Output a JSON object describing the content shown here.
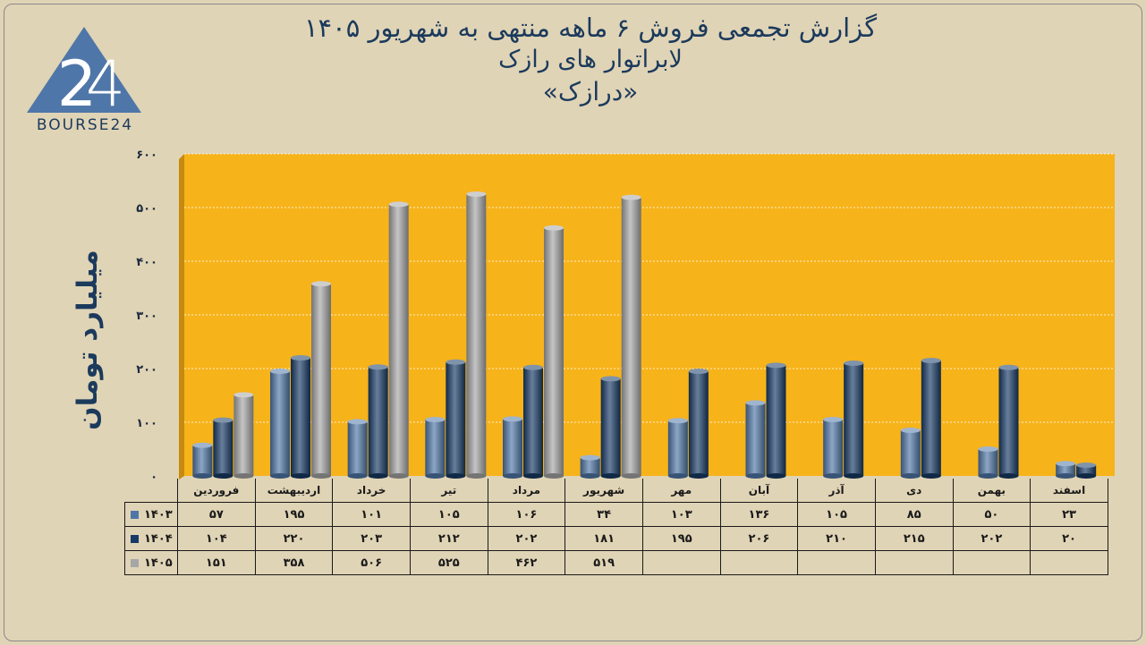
{
  "title": {
    "line1": "گزارش تجمعی فروش ۶ ماهه منتهی به شهریور ۱۴۰۵",
    "line2": "لابراتوار های رازک",
    "line3": "«درازک»"
  },
  "logo": {
    "icon": "bourse24-triangle-logo",
    "text": "BOURSE24"
  },
  "colors": {
    "background": "#e0d4b6",
    "plot_area": "#f7b31a",
    "s1403": "#4f76a8",
    "s1404": "#173a66",
    "s1405": "#a6a6a6"
  },
  "chart_data": {
    "type": "bar",
    "ylabel": "میلیارد تومان",
    "ylim": [
      0,
      600
    ],
    "yticks": [
      "۰",
      "۱۰۰",
      "۲۰۰",
      "۳۰۰",
      "۴۰۰",
      "۵۰۰",
      "۶۰۰"
    ],
    "grid": true,
    "categories": [
      "فروردین",
      "اردیبهشت",
      "خرداد",
      "تیر",
      "مرداد",
      "شهریور",
      "مهر",
      "آبان",
      "آذر",
      "دی",
      "بهمن",
      "اسفند"
    ],
    "series": [
      {
        "name": "۱۴۰۳",
        "values": [
          57,
          195,
          101,
          105,
          106,
          34,
          103,
          136,
          105,
          85,
          50,
          23
        ],
        "labels": [
          "۵۷",
          "۱۹۵",
          "۱۰۱",
          "۱۰۵",
          "۱۰۶",
          "۳۴",
          "۱۰۳",
          "۱۳۶",
          "۱۰۵",
          "۸۵",
          "۵۰",
          "۲۳"
        ]
      },
      {
        "name": "۱۴۰۴",
        "values": [
          104,
          220,
          203,
          212,
          202,
          181,
          195,
          206,
          210,
          215,
          202,
          20
        ],
        "labels": [
          "۱۰۴",
          "۲۲۰",
          "۲۰۳",
          "۲۱۲",
          "۲۰۲",
          "۱۸۱",
          "۱۹۵",
          "۲۰۶",
          "۲۱۰",
          "۲۱۵",
          "۲۰۲",
          "۲۰"
        ]
      },
      {
        "name": "۱۴۰۵",
        "values": [
          151,
          358,
          506,
          525,
          462,
          519,
          null,
          null,
          null,
          null,
          null,
          null
        ],
        "labels": [
          "۱۵۱",
          "۳۵۸",
          "۵۰۶",
          "۵۲۵",
          "۴۶۲",
          "۵۱۹",
          "",
          "",
          "",
          "",
          "",
          ""
        ]
      }
    ]
  }
}
